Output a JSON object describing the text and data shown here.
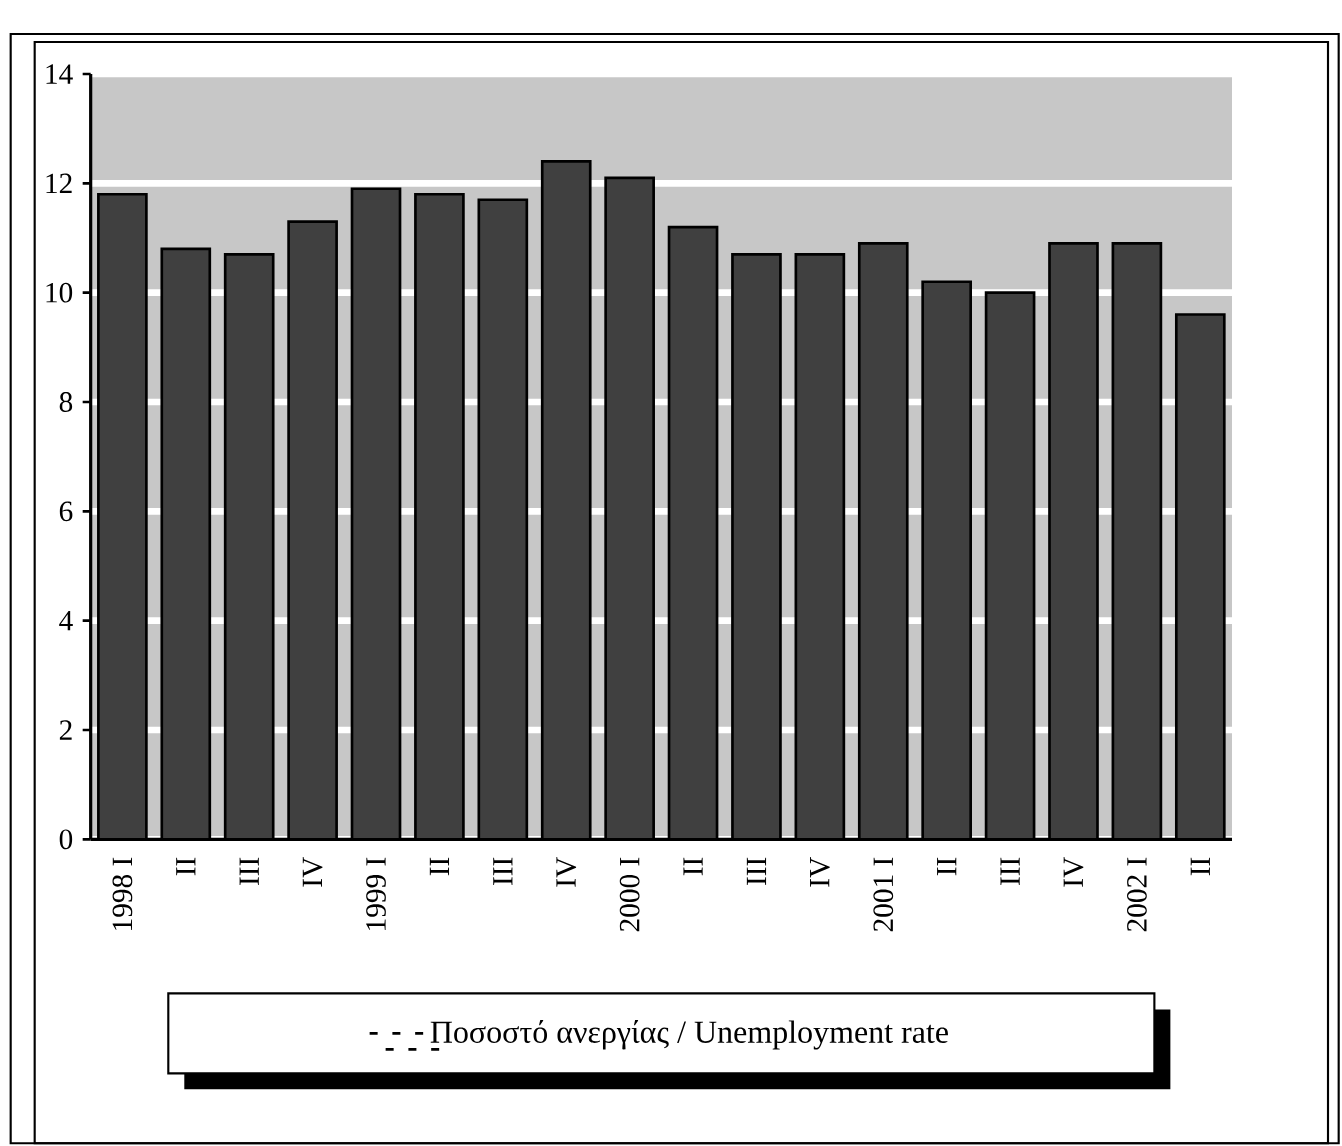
{
  "chart_data": {
    "type": "bar",
    "categories": [
      "1998 I",
      "II",
      "III",
      "IV",
      "1999 I",
      "II",
      "III",
      "IV",
      "2000 I",
      "II",
      "III",
      "IV",
      "2001 I",
      "II",
      "III",
      "IV",
      "2002 I",
      "II"
    ],
    "series": [
      {
        "name": "Ποσοστό ανεργίας / Unemployment rate",
        "color": "#404040",
        "values": [
          11.8,
          10.8,
          10.7,
          11.3,
          11.9,
          11.8,
          11.7,
          12.4,
          12.1,
          11.2,
          10.7,
          10.7,
          10.9,
          10.2,
          10.0,
          10.9,
          10.9,
          9.6
        ]
      }
    ],
    "ylim": [
      0,
      14
    ],
    "yticks": [
      0,
      2,
      4,
      6,
      8,
      10,
      12,
      14
    ],
    "grid": "y",
    "legend": "bottom"
  }
}
